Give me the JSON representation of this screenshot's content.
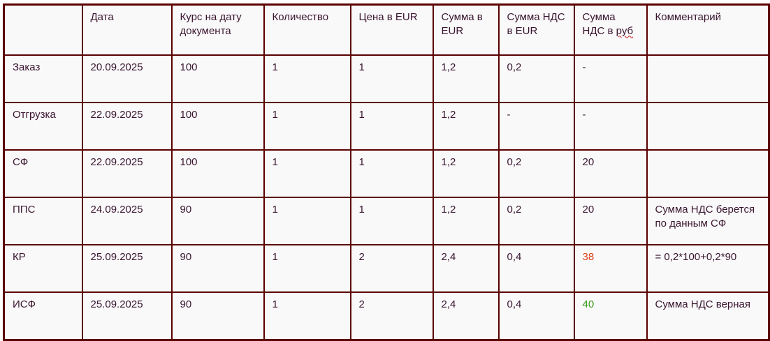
{
  "table": {
    "headers": [
      "",
      "Дата",
      "Курс на дату документа",
      "Количество",
      "Цена в EUR",
      "Сумма в EUR",
      "Сумма НДС в EUR",
      "Сумма НДС в ",
      "Комментарий"
    ],
    "header_rub_word": "руб",
    "rows": [
      [
        "Заказ",
        "20.09.2025",
        "100",
        "1",
        "1",
        "1,2",
        "0,2",
        "-",
        ""
      ],
      [
        "Отгрузка",
        "22.09.2025",
        "100",
        "1",
        "1",
        "1,2",
        "-",
        "-",
        ""
      ],
      [
        "СФ",
        "22.09.2025",
        "100",
        "1",
        "1",
        "1,2",
        "0,2",
        "20",
        ""
      ],
      [
        "ППС",
        "24.09.2025",
        "90",
        "1",
        "1",
        "1,2",
        "0,2",
        "20",
        "Сумма НДС берется по данным СФ"
      ],
      [
        "КР",
        "25.09.2025",
        "90",
        "1",
        "2",
        "2,4",
        "0,4",
        "38",
        "= 0,2*100+0,2*90"
      ],
      [
        "ИСФ",
        "25.09.2025",
        "90",
        "1",
        "2",
        "2,4",
        "0,4",
        "40",
        "Сумма НДС верная"
      ]
    ],
    "highlight_colors": {
      "КР_vat_rub": "#e0401a",
      "ИСФ_vat_rub": "#3a9a1a"
    },
    "border_color": "#5a0000"
  }
}
